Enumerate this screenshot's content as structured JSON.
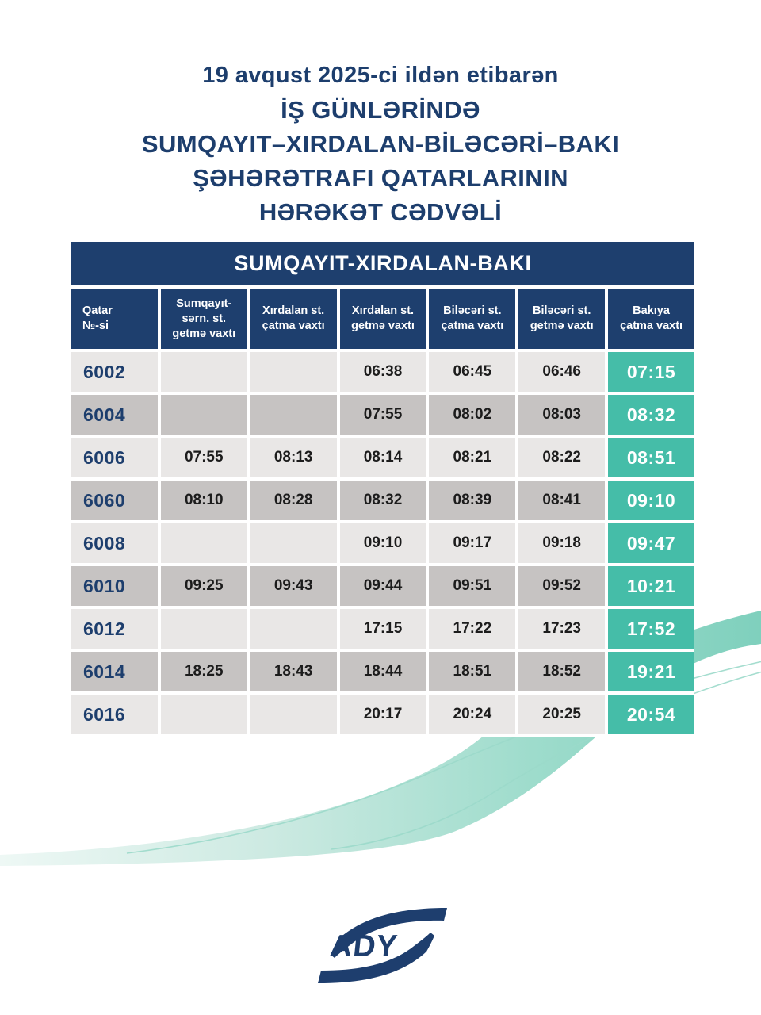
{
  "poster": {
    "title_lines": [
      "19 avqust 2025-ci ildən etibarən",
      "İŞ GÜNLƏRİNDƏ",
      "SUMQAYIT–XIRDALAN-BİLƏCƏRİ–BAKI",
      "ŞƏHƏRƏTRAFI QATARLARININ",
      "HƏRƏKƏT CƏDVƏLİ"
    ]
  },
  "table": {
    "title": "SUMQAYIT-XIRDALAN-BAKI",
    "columns": [
      "Qatar\n№-si",
      "Sumqayıt-\nsərn. st.\ngetmə vaxtı",
      "Xırdalan st.\nçatma vaxtı",
      "Xırdalan st.\ngetmə vaxtı",
      "Biləcəri st.\nçatma vaxtı",
      "Biləcəri st.\ngetmə vaxtı",
      "Bakıya\nçatma vaxtı"
    ],
    "rows": [
      {
        "train": "6002",
        "times": [
          "",
          "",
          "06:38",
          "06:45",
          "06:46"
        ],
        "arrival": "07:15"
      },
      {
        "train": "6004",
        "times": [
          "",
          "",
          "07:55",
          "08:02",
          "08:03"
        ],
        "arrival": "08:32"
      },
      {
        "train": "6006",
        "times": [
          "07:55",
          "08:13",
          "08:14",
          "08:21",
          "08:22"
        ],
        "arrival": "08:51"
      },
      {
        "train": "6060",
        "times": [
          "08:10",
          "08:28",
          "08:32",
          "08:39",
          "08:41"
        ],
        "arrival": "09:10"
      },
      {
        "train": "6008",
        "times": [
          "",
          "",
          "09:10",
          "09:17",
          "09:18"
        ],
        "arrival": "09:47"
      },
      {
        "train": "6010",
        "times": [
          "09:25",
          "09:43",
          "09:44",
          "09:51",
          "09:52"
        ],
        "arrival": "10:21"
      },
      {
        "train": "6012",
        "times": [
          "",
          "",
          "17:15",
          "17:22",
          "17:23"
        ],
        "arrival": "17:52"
      },
      {
        "train": "6014",
        "times": [
          "18:25",
          "18:43",
          "18:44",
          "18:51",
          "18:52"
        ],
        "arrival": "19:21"
      },
      {
        "train": "6016",
        "times": [
          "",
          "",
          "20:17",
          "20:24",
          "20:25"
        ],
        "arrival": "20:54"
      }
    ]
  },
  "logo": {
    "text": "ADY"
  },
  "colors": {
    "navy": "#1e3f6e",
    "title_navy": "#1d3e6d",
    "teal_cell": "#45bda8",
    "row_light": "#e9e7e6",
    "row_dark": "#c6c3c2",
    "swoosh_teal": "#7fd0bd",
    "swoosh_light": "#e7f6f1"
  }
}
